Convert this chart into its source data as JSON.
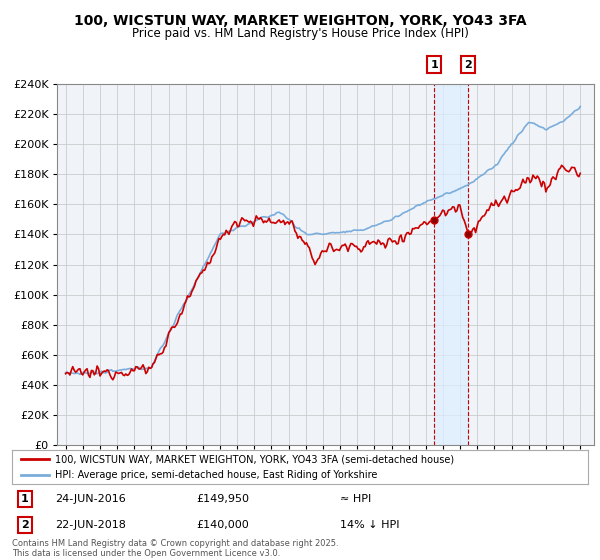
{
  "title": "100, WICSTUN WAY, MARKET WEIGHTON, YORK, YO43 3FA",
  "subtitle": "Price paid vs. HM Land Registry's House Price Index (HPI)",
  "legend_line1": "100, WICSTUN WAY, MARKET WEIGHTON, YORK, YO43 3FA (semi-detached house)",
  "legend_line2": "HPI: Average price, semi-detached house, East Riding of Yorkshire",
  "annotation1_date": "24-JUN-2016",
  "annotation1_price": "£149,950",
  "annotation1_hpi": "≈ HPI",
  "annotation2_date": "22-JUN-2018",
  "annotation2_price": "£140,000",
  "annotation2_hpi": "14% ↓ HPI",
  "copyright": "Contains HM Land Registry data © Crown copyright and database right 2025.\nThis data is licensed under the Open Government Licence v3.0.",
  "price_color": "#cc0000",
  "hpi_color": "#7aaddb",
  "vline_color": "#cc0000",
  "shade_color": "#ddeeff",
  "chart_bg": "#f0f4f8",
  "background_color": "#ffffff",
  "grid_color": "#cccccc",
  "ylim": [
    0,
    240000
  ],
  "yticks": [
    0,
    20000,
    40000,
    60000,
    80000,
    100000,
    120000,
    140000,
    160000,
    180000,
    200000,
    220000,
    240000
  ],
  "sale1_year": 2016.48,
  "sale1_price": 149950,
  "sale2_year": 2018.47,
  "sale2_price": 140000,
  "xlim_left": 1994.5,
  "xlim_right": 2025.8
}
